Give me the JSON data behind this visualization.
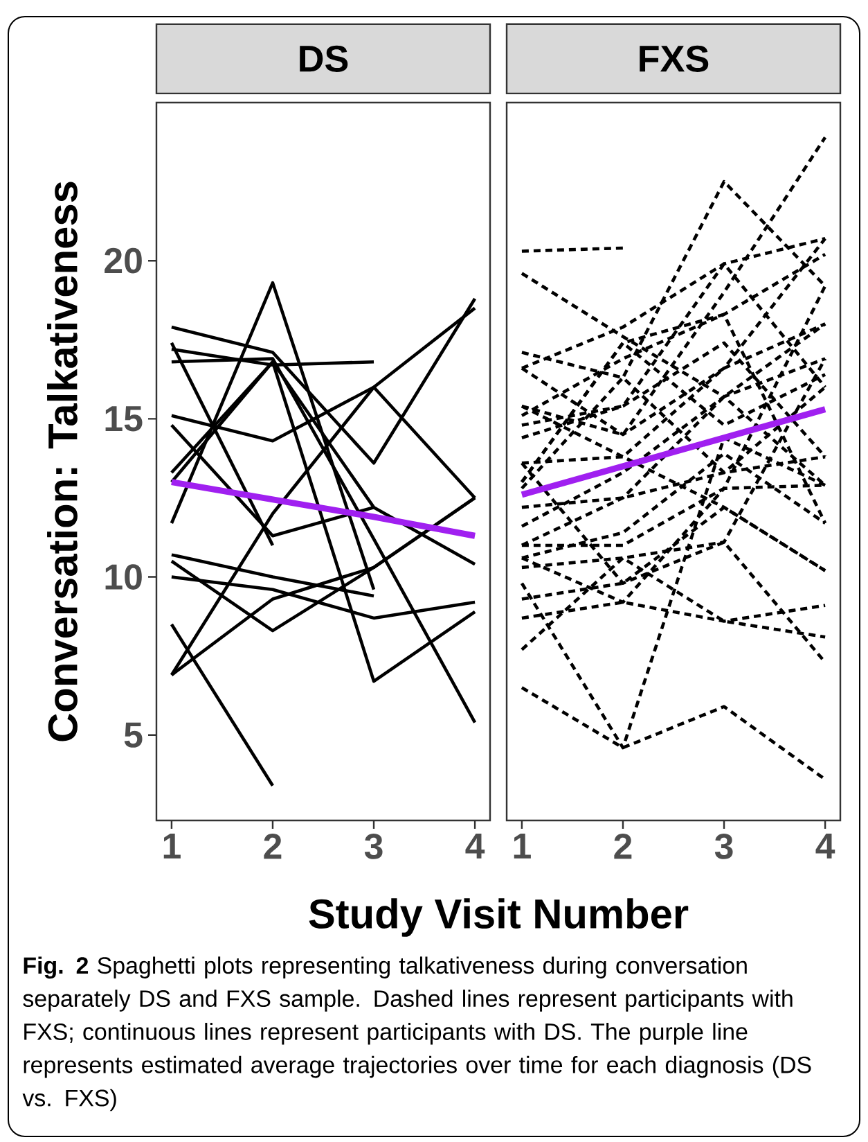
{
  "chart_data": [
    {
      "type": "line",
      "title": "DS",
      "ylabel": "Conversation: Talkativeness",
      "xlabel": "Study Visit Number",
      "annotations": [
        "**Fig. 2** Spaghetti plots representing talkativeness during conversation separately DS and FXS sample. Dashed lines represent participants with FXS; continuous lines represent participants with DS. The purple line represents estimated average trajectories over time for each diagnosis (DS vs. FXS)"
      ],
      "x": [
        1,
        2,
        3,
        4
      ],
      "xlim": [
        0.85,
        4.15
      ],
      "xticks": [
        1,
        2,
        3,
        4
      ],
      "ylim": [
        2.3,
        25.0
      ],
      "yticks": [
        5,
        10,
        15,
        20
      ],
      "marker": "none",
      "series": [
        {
          "color": "#000000",
          "line_style": "solid",
          "values": [
            17.9,
            17.1,
            13.6,
            18.8
          ]
        },
        {
          "color": "#000000",
          "line_style": "solid",
          "values": [
            17.2,
            16.7,
            16.8,
            null
          ]
        },
        {
          "color": "#000000",
          "line_style": "solid",
          "values": [
            17.4,
            11.0,
            null,
            null
          ]
        },
        {
          "color": "#000000",
          "line_style": "solid",
          "values": [
            11.7,
            19.3,
            9.6,
            null
          ]
        },
        {
          "color": "#000000",
          "line_style": "solid",
          "values": [
            13.3,
            16.8,
            12.2,
            10.4
          ]
        },
        {
          "color": "#000000",
          "line_style": "solid",
          "values": [
            15.1,
            14.3,
            16.0,
            12.5
          ]
        },
        {
          "color": "#000000",
          "line_style": "solid",
          "values": [
            14.8,
            11.3,
            12.2,
            null
          ]
        },
        {
          "color": "#000000",
          "line_style": "solid",
          "values": [
            10.7,
            10.0,
            9.4,
            null
          ]
        },
        {
          "color": "#000000",
          "line_style": "solid",
          "values": [
            10.5,
            8.3,
            10.3,
            12.5
          ]
        },
        {
          "color": "#000000",
          "line_style": "solid",
          "values": [
            10.0,
            9.6,
            8.7,
            9.2
          ]
        },
        {
          "color": "#000000",
          "line_style": "solid",
          "values": [
            8.5,
            3.4,
            null,
            null
          ]
        },
        {
          "color": "#000000",
          "line_style": "solid",
          "values": [
            6.9,
            9.3,
            10.3,
            12.5
          ]
        },
        {
          "color": "#000000",
          "line_style": "solid",
          "values": [
            6.9,
            12.0,
            16.0,
            18.5
          ]
        },
        {
          "color": "#000000",
          "line_style": "solid",
          "values": [
            13.0,
            16.8,
            6.7,
            8.9
          ]
        },
        {
          "color": "#000000",
          "line_style": "solid",
          "values": [
            16.8,
            16.9,
            11.2,
            5.4
          ]
        },
        {
          "type": "line",
          "color": "#a020f0",
          "line_style": "solid",
          "values": [
            13.0,
            12.45,
            11.9,
            11.3
          ]
        }
      ]
    },
    {
      "type": "line",
      "title": "FXS",
      "tick_labels": "x",
      "x": [
        1,
        2,
        3,
        4
      ],
      "xlim": [
        0.85,
        4.15
      ],
      "xticks": [
        1,
        2,
        3,
        4
      ],
      "ylim": [
        2.3,
        25.0
      ],
      "marker": "none",
      "series": [
        {
          "color": "#000000",
          "line_style": "dashed",
          "values": [
            20.3,
            20.4,
            null,
            null
          ]
        },
        {
          "color": "#000000",
          "line_style": "dashed",
          "values": [
            19.6,
            17.6,
            15.7,
            16.9
          ]
        },
        {
          "color": "#000000",
          "line_style": "dashed",
          "values": [
            17.1,
            16.3,
            22.5,
            19.2
          ]
        },
        {
          "color": "#000000",
          "line_style": "dashed",
          "values": [
            16.6,
            17.9,
            19.9,
            20.7
          ]
        },
        {
          "color": "#000000",
          "line_style": "dashed",
          "values": [
            15.4,
            14.5,
            19.0,
            23.9
          ]
        },
        {
          "color": "#000000",
          "line_style": "dashed",
          "values": [
            15.1,
            16.9,
            18.3,
            20.2
          ]
        },
        {
          "color": "#000000",
          "line_style": "dashed",
          "values": [
            14.4,
            15.4,
            17.4,
            13.8
          ]
        },
        {
          "color": "#000000",
          "line_style": "dashed",
          "values": [
            13.6,
            13.8,
            16.6,
            18.0
          ]
        },
        {
          "color": "#000000",
          "line_style": "dashed",
          "values": [
            13.0,
            17.4,
            14.8,
            16.4
          ]
        },
        {
          "color": "#000000",
          "line_style": "dashed",
          "values": [
            12.2,
            12.5,
            13.3,
            16.0
          ]
        },
        {
          "color": "#000000",
          "line_style": "dashed",
          "values": [
            11.6,
            13.3,
            15.7,
            12.9
          ]
        },
        {
          "color": "#000000",
          "line_style": "dashed",
          "values": [
            11.0,
            11.0,
            12.8,
            19.2
          ]
        },
        {
          "color": "#000000",
          "line_style": "dashed",
          "values": [
            10.6,
            11.4,
            13.9,
            11.7
          ]
        },
        {
          "color": "#000000",
          "line_style": "dashed",
          "values": [
            10.3,
            10.6,
            11.1,
            16.9
          ]
        },
        {
          "color": "#000000",
          "line_style": "dashed",
          "values": [
            9.3,
            9.8,
            12.2,
            10.2
          ]
        },
        {
          "color": "#000000",
          "line_style": "dashed",
          "values": [
            8.7,
            9.2,
            8.6,
            9.1
          ]
        },
        {
          "color": "#000000",
          "line_style": "dashed",
          "values": [
            7.7,
            10.6,
            8.6,
            8.1
          ]
        },
        {
          "color": "#000000",
          "line_style": "dashed",
          "values": [
            6.5,
            4.6,
            5.9,
            3.6
          ]
        },
        {
          "color": "#000000",
          "line_style": "dashed",
          "values": [
            9.8,
            4.6,
            14.4,
            12.9
          ]
        },
        {
          "color": "#000000",
          "line_style": "dashed",
          "values": [
            13.6,
            9.8,
            11.1,
            7.3
          ]
        },
        {
          "color": "#000000",
          "line_style": "dashed",
          "values": [
            12.8,
            16.3,
            13.3,
            13.8
          ]
        },
        {
          "color": "#000000",
          "line_style": "dashed",
          "values": [
            14.8,
            15.4,
            19.9,
            16.0
          ]
        },
        {
          "color": "#000000",
          "line_style": "dashed",
          "values": [
            16.6,
            14.5,
            16.6,
            20.7
          ]
        },
        {
          "color": "#000000",
          "line_style": "dashed",
          "values": [
            11.0,
            12.5,
            15.7,
            18.0
          ]
        },
        {
          "color": "#000000",
          "line_style": "dashed",
          "values": [
            10.6,
            9.2,
            12.8,
            12.9
          ]
        },
        {
          "color": "#000000",
          "line_style": "dashed",
          "values": [
            15.4,
            13.8,
            12.2,
            10.2
          ]
        },
        {
          "color": "#000000",
          "line_style": "dashed",
          "values": [
            13.0,
            17.4,
            18.3,
            11.7
          ]
        },
        {
          "type": "line",
          "color": "#a020f0",
          "line_style": "solid",
          "values": [
            12.6,
            13.5,
            14.4,
            15.3
          ]
        }
      ]
    }
  ]
}
